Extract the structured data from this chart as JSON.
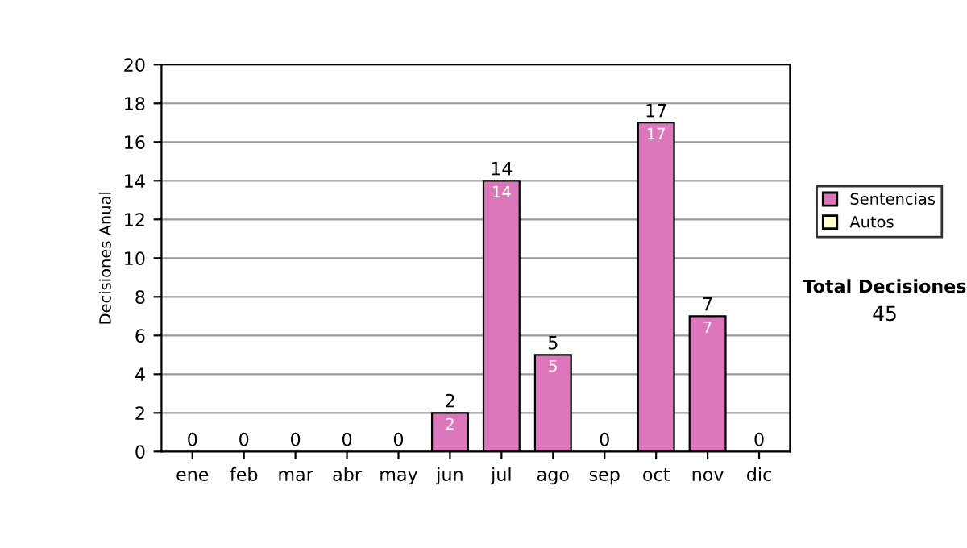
{
  "chart_data": {
    "type": "bar",
    "ylabel": "Decisiones Anual",
    "categories": [
      "ene",
      "feb",
      "mar",
      "abr",
      "may",
      "jun",
      "jul",
      "ago",
      "sep",
      "oct",
      "nov",
      "dic"
    ],
    "stacked": true,
    "series": [
      {
        "name": "Sentencias",
        "color": "#dd77bb",
        "values": [
          0,
          0,
          0,
          0,
          0,
          2,
          14,
          5,
          0,
          17,
          7,
          0
        ],
        "value_labels": [
          null,
          null,
          null,
          null,
          null,
          "2",
          "14",
          "5",
          null,
          "17",
          "7",
          null
        ]
      },
      {
        "name": "Autos",
        "color": "#ffffcc",
        "values": [
          0,
          0,
          0,
          0,
          0,
          0,
          0,
          0,
          0,
          0,
          0,
          0
        ]
      }
    ],
    "totals": [
      "0",
      "0",
      "0",
      "0",
      "0",
      "2",
      "14",
      "5",
      "0",
      "17",
      "7",
      "0"
    ],
    "ylim": [
      0,
      20
    ],
    "yticks": [
      0,
      2,
      4,
      6,
      8,
      10,
      12,
      14,
      16,
      18,
      20
    ],
    "grid": "y",
    "legend": "right",
    "annotations": [
      "Total Decisiones",
      "45"
    ]
  }
}
